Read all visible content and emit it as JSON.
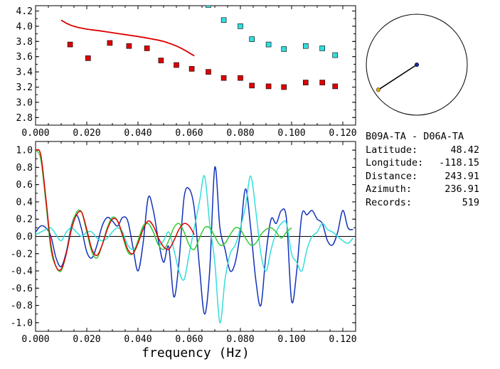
{
  "chart_data": [
    {
      "type": "scatter",
      "title": "",
      "xlabel": "",
      "ylabel": "",
      "xlim": [
        0.0,
        0.125
      ],
      "ylim": [
        2.7,
        4.27
      ],
      "x_ticks": [
        "0.000",
        "0.020",
        "0.040",
        "0.060",
        "0.080",
        "0.100",
        "0.120"
      ],
      "y_ticks": [
        "2.8",
        "3.0",
        "3.2",
        "3.4",
        "3.6",
        "3.8",
        "4.0",
        "4.2"
      ],
      "series": [
        {
          "color": "#dd0000",
          "marker": "square",
          "points": [
            [
              0.0135,
              3.76
            ],
            [
              0.0205,
              3.58
            ],
            [
              0.029,
              3.78
            ],
            [
              0.0365,
              3.74
            ],
            [
              0.0435,
              3.71
            ],
            [
              0.049,
              3.55
            ],
            [
              0.055,
              3.49
            ],
            [
              0.061,
              3.44
            ],
            [
              0.0675,
              3.4
            ],
            [
              0.0735,
              3.32
            ],
            [
              0.08,
              3.32
            ],
            [
              0.0845,
              3.22
            ],
            [
              0.091,
              3.21
            ],
            [
              0.097,
              3.2
            ],
            [
              0.1055,
              3.26
            ],
            [
              0.112,
              3.26
            ],
            [
              0.117,
              3.21
            ]
          ]
        },
        {
          "color": "#33dddd",
          "marker": "square",
          "points": [
            [
              0.0675,
              4.28
            ],
            [
              0.0735,
              4.08
            ],
            [
              0.08,
              4.0
            ],
            [
              0.0845,
              3.83
            ],
            [
              0.091,
              3.76
            ],
            [
              0.097,
              3.7
            ],
            [
              0.1055,
              3.74
            ],
            [
              0.112,
              3.71
            ],
            [
              0.117,
              3.62
            ]
          ]
        },
        {
          "color": "#dd0000",
          "marker": "line",
          "x": [
            0.01,
            0.012,
            0.014,
            0.016,
            0.018,
            0.02,
            0.025,
            0.03,
            0.035,
            0.04,
            0.045,
            0.05,
            0.055,
            0.058,
            0.06,
            0.062
          ],
          "y": [
            4.08,
            4.04,
            4.01,
            3.99,
            3.975,
            3.962,
            3.94,
            3.915,
            3.89,
            3.865,
            3.835,
            3.8,
            3.74,
            3.69,
            3.65,
            3.61
          ]
        }
      ]
    },
    {
      "type": "line",
      "title": "",
      "xlabel": "frequency (Hz)",
      "ylabel": "",
      "xlim": [
        0.0,
        0.125
      ],
      "ylim": [
        -1.1,
        1.1
      ],
      "x_ticks": [
        "0.000",
        "0.020",
        "0.040",
        "0.060",
        "0.080",
        "0.100",
        "0.120"
      ],
      "y_ticks": [
        "-1.0",
        "-0.8",
        "-0.6",
        "-0.4",
        "-0.2",
        "0.0",
        "0.2",
        "0.4",
        "0.6",
        "0.8",
        "1.0"
      ],
      "series": [
        {
          "color": "#1133bb",
          "x": [
            0,
            0.002,
            0.004,
            0.006,
            0.008,
            0.01,
            0.012,
            0.014,
            0.016,
            0.018,
            0.02,
            0.022,
            0.024,
            0.026,
            0.028,
            0.03,
            0.032,
            0.034,
            0.036,
            0.038,
            0.04,
            0.042,
            0.044,
            0.046,
            0.048,
            0.05,
            0.052,
            0.054,
            0.056,
            0.058,
            0.06,
            0.062,
            0.064,
            0.066,
            0.068,
            0.07,
            0.072,
            0.074,
            0.076,
            0.078,
            0.08,
            0.082,
            0.084,
            0.086,
            0.088,
            0.09,
            0.092,
            0.094,
            0.096,
            0.098,
            0.1,
            0.102,
            0.104,
            0.106,
            0.108,
            0.11,
            0.112,
            0.114,
            0.116,
            0.118,
            0.12,
            0.122,
            0.124
          ],
          "y": [
            0.05,
            0.12,
            0.1,
            0.0,
            -0.25,
            -0.35,
            -0.18,
            0.12,
            0.25,
            0.08,
            -0.18,
            -0.25,
            -0.1,
            0.12,
            0.22,
            0.18,
            0.12,
            0.22,
            0.18,
            -0.12,
            -0.4,
            -0.08,
            0.45,
            0.3,
            -0.05,
            -0.3,
            -0.12,
            -0.7,
            -0.3,
            0.45,
            0.55,
            0.32,
            -0.35,
            -0.9,
            -0.4,
            0.8,
            0.1,
            -0.15,
            -0.4,
            -0.3,
            0.05,
            0.55,
            0.1,
            -0.5,
            -0.8,
            -0.2,
            0.2,
            0.15,
            0.3,
            0.2,
            -0.75,
            -0.4,
            0.25,
            0.25,
            0.3,
            0.2,
            0.15,
            -0.05,
            -0.1,
            0.05,
            0.3,
            0.1,
            0.08
          ]
        },
        {
          "color": "#33dddd",
          "x": [
            0,
            0.002,
            0.004,
            0.006,
            0.008,
            0.01,
            0.012,
            0.014,
            0.016,
            0.018,
            0.02,
            0.022,
            0.024,
            0.026,
            0.028,
            0.03,
            0.032,
            0.034,
            0.036,
            0.038,
            0.04,
            0.042,
            0.044,
            0.046,
            0.048,
            0.05,
            0.052,
            0.054,
            0.056,
            0.058,
            0.06,
            0.062,
            0.064,
            0.066,
            0.068,
            0.07,
            0.072,
            0.074,
            0.076,
            0.078,
            0.08,
            0.082,
            0.084,
            0.086,
            0.088,
            0.09,
            0.092,
            0.094,
            0.096,
            0.098,
            0.1,
            0.102,
            0.104,
            0.106,
            0.108,
            0.11,
            0.112,
            0.114,
            0.116,
            0.118,
            0.12,
            0.122,
            0.124
          ],
          "y": [
            0.02,
            0.05,
            0.08,
            0.1,
            0.02,
            -0.05,
            0.05,
            0.1,
            0.05,
            0.0,
            0.05,
            0.05,
            -0.02,
            -0.05,
            -0.02,
            0.05,
            0.1,
            0.05,
            -0.1,
            -0.15,
            -0.08,
            0.1,
            0.15,
            0.05,
            -0.1,
            -0.05,
            0.05,
            -0.15,
            -0.4,
            -0.5,
            -0.2,
            0.1,
            0.4,
            0.7,
            0.15,
            -0.3,
            -1.0,
            -0.5,
            -0.2,
            -0.1,
            0.1,
            0.35,
            0.7,
            0.3,
            -0.2,
            -0.4,
            -0.15,
            0.05,
            0.15,
            0.15,
            -0.2,
            -0.3,
            -0.4,
            -0.15,
            0.0,
            0.05,
            0.15,
            0.08,
            0.05,
            0.0,
            -0.05,
            -0.08,
            -0.02
          ]
        },
        {
          "color": "#33cc33",
          "x": [
            0,
            0.002,
            0.004,
            0.006,
            0.008,
            0.01,
            0.012,
            0.014,
            0.016,
            0.018,
            0.02,
            0.022,
            0.024,
            0.026,
            0.028,
            0.03,
            0.032,
            0.034,
            0.036,
            0.038,
            0.04,
            0.042,
            0.044,
            0.046,
            0.048,
            0.05,
            0.052,
            0.054,
            0.056,
            0.058,
            0.06,
            0.062,
            0.064,
            0.066,
            0.068,
            0.07,
            0.072,
            0.074,
            0.076,
            0.078,
            0.08,
            0.082,
            0.084,
            0.086,
            0.088,
            0.09,
            0.092,
            0.094,
            0.096,
            0.098,
            0.1
          ],
          "y": [
            1.0,
            0.9,
            0.4,
            -0.15,
            -0.35,
            -0.4,
            -0.2,
            0.1,
            0.28,
            0.28,
            0.05,
            -0.18,
            -0.25,
            -0.1,
            0.1,
            0.22,
            0.18,
            0.0,
            -0.18,
            -0.2,
            -0.05,
            0.12,
            0.15,
            0.05,
            -0.1,
            -0.15,
            -0.05,
            0.1,
            0.15,
            0.05,
            -0.1,
            -0.15,
            -0.02,
            0.1,
            0.1,
            0.0,
            -0.1,
            -0.08,
            0.02,
            0.1,
            0.08,
            -0.02,
            -0.1,
            -0.08,
            0.02,
            0.08,
            0.1,
            0.05,
            -0.02,
            0.05,
            0.1
          ]
        },
        {
          "color": "#dd0000",
          "x": [
            0,
            0.002,
            0.004,
            0.006,
            0.008,
            0.01,
            0.012,
            0.014,
            0.016,
            0.018,
            0.02,
            0.022,
            0.024,
            0.026,
            0.028,
            0.03,
            0.032,
            0.034,
            0.036,
            0.038,
            0.04,
            0.042,
            0.044,
            0.046,
            0.048,
            0.05,
            0.052,
            0.054,
            0.056,
            0.058,
            0.06,
            0.062
          ],
          "y": [
            1.0,
            0.95,
            0.45,
            -0.1,
            -0.35,
            -0.38,
            -0.2,
            0.08,
            0.25,
            0.28,
            0.08,
            -0.15,
            -0.22,
            -0.1,
            0.08,
            0.2,
            0.18,
            0.02,
            -0.15,
            -0.2,
            -0.08,
            0.08,
            0.18,
            0.12,
            -0.02,
            -0.12,
            -0.15,
            -0.05,
            0.08,
            0.15,
            0.12,
            0.02
          ]
        }
      ]
    }
  ],
  "inset": {
    "center_color": "#1a2a9a",
    "station_color": "#ddaa00",
    "azimuth_deg": 236.91,
    "ray_length_fraction": 0.91
  },
  "info": {
    "title": "B09A-TA - D06A-TA",
    "rows": [
      {
        "label": "Latitude:",
        "value": "48.42"
      },
      {
        "label": "Longitude:",
        "value": "-118.15"
      },
      {
        "label": "Distance:",
        "value": "243.91"
      },
      {
        "label": "Azimuth:",
        "value": "236.91"
      },
      {
        "label": "Records:",
        "value": "519"
      }
    ]
  }
}
